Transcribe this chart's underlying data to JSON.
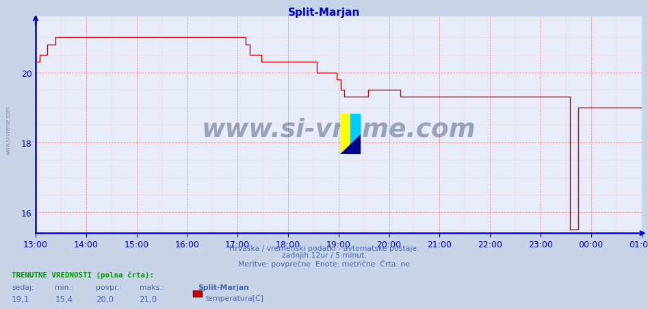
{
  "title": "Split-Marjan",
  "title_color": "#0000cc",
  "bg_color": "#c8d4e8",
  "plot_bg_color": "#e8ecf8",
  "line_color": "#cc0000",
  "grid_h_major_color": "#e08080",
  "grid_h_minor_color": "#e8b0b0",
  "grid_v_color": "#e08080",
  "axis_color": "#0000cc",
  "tick_color": "#0000aa",
  "ylim_min": 15.4,
  "ylim_max": 21.6,
  "ytick_vals": [
    16,
    18,
    20
  ],
  "x_tick_labels": [
    "13:00",
    "14:00",
    "15:00",
    "16:00",
    "17:00",
    "18:00",
    "19:00",
    "20:00",
    "21:00",
    "22:00",
    "23:00",
    "00:00",
    "01:00"
  ],
  "footer_color": "#4466aa",
  "footer_line1": "Hrvaška / vremenski podatki - avtomatske postaje.",
  "footer_line2": "zadnjih 12ur / 5 minut.",
  "footer_line3": "Meritve: povprečne  Enote: metrične  Črta: ne",
  "bottom_label": "TRENUTNE VREDNOSTI (polna črta):",
  "bottom_label_color": "#009900",
  "col_headers": [
    "sedaj:",
    "min.:",
    "povpr.:",
    "maks.:"
  ],
  "col_values": [
    "19,1",
    "15,4",
    "20,0",
    "21,0"
  ],
  "station_name": "Split-Marjan",
  "series_name": "temperatura[C]",
  "legend_color": "#cc0000",
  "watermark": "www.si-vreme.com",
  "watermark_color": "#1a2e5a",
  "side_label": "www.si-vreme.com",
  "side_label_color": "#7090c0",
  "temps": [
    20.3,
    20.5,
    20.5,
    20.8,
    20.8,
    21.0,
    21.0,
    21.0,
    21.0,
    21.0,
    21.0,
    21.0,
    21.0,
    21.0,
    21.0,
    21.0,
    21.0,
    21.0,
    21.0,
    21.0,
    21.0,
    21.0,
    21.0,
    21.0,
    21.0,
    21.0,
    21.0,
    21.0,
    21.0,
    21.0,
    21.0,
    21.0,
    21.0,
    21.0,
    21.0,
    21.0,
    21.0,
    21.0,
    21.0,
    21.0,
    21.0,
    21.0,
    21.0,
    21.0,
    21.0,
    21.0,
    21.0,
    21.0,
    21.0,
    21.0,
    21.0,
    21.0,
    21.0,
    20.8,
    20.5,
    20.5,
    20.5,
    20.3,
    20.3,
    20.3,
    20.3,
    20.3,
    20.3,
    20.3,
    20.3,
    20.3,
    20.3,
    20.3,
    20.3,
    20.3,
    20.3,
    20.0,
    20.0,
    20.0,
    20.0,
    20.0,
    19.8,
    19.5,
    19.3,
    19.3,
    19.3,
    19.3,
    19.3,
    19.3,
    19.5,
    19.5,
    19.5,
    19.5,
    19.5,
    19.5,
    19.5,
    19.5,
    19.3,
    19.3,
    19.3,
    19.3,
    19.3,
    19.3,
    19.3,
    19.3,
    19.3,
    19.3,
    19.3,
    19.3,
    19.3,
    19.3,
    19.3,
    19.3,
    19.3,
    19.3,
    19.3,
    19.3,
    19.3,
    19.3,
    19.3,
    19.3,
    19.3,
    19.3,
    19.3,
    19.3,
    19.3,
    19.3,
    19.3,
    19.3,
    19.3,
    19.3,
    19.3,
    19.3,
    19.3,
    19.3,
    19.3,
    19.3,
    19.3,
    19.3,
    19.3,
    15.5,
    15.5,
    19.0,
    19.0,
    19.0,
    19.0,
    19.0,
    19.0,
    19.0,
    19.0,
    19.0,
    19.0,
    19.0,
    19.0,
    19.0,
    19.0,
    19.0,
    19.0,
    19.0
  ]
}
